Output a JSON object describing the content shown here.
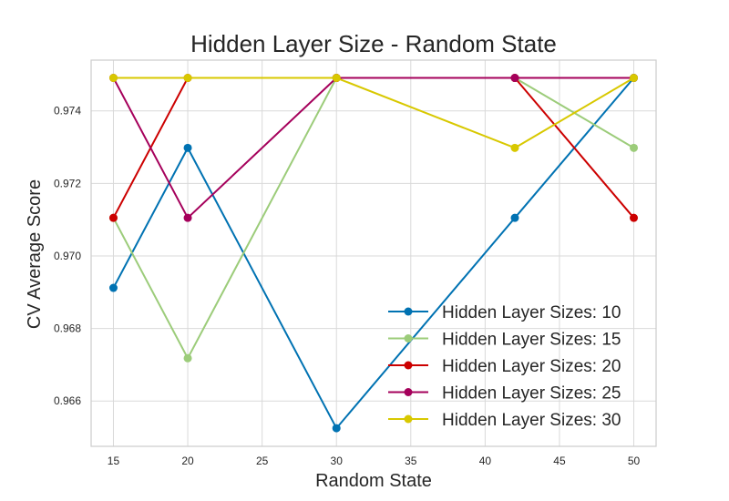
{
  "chart_data": {
    "type": "line",
    "title": "Hidden Layer Size - Random State",
    "xlabel": "Random State",
    "ylabel": "CV Average Score",
    "x": [
      15,
      20,
      30,
      42,
      50
    ],
    "xticks": [
      15,
      20,
      25,
      30,
      35,
      40,
      45,
      50
    ],
    "yticks": [
      0.966,
      0.968,
      0.97,
      0.972,
      0.974
    ],
    "ytick_labels": [
      "0.966",
      "0.968",
      "0.970",
      "0.972",
      "0.974"
    ],
    "xlim": [
      13.5,
      51.5
    ],
    "ylim": [
      0.96475,
      0.9754
    ],
    "grid": true,
    "legend_position": "lower-right",
    "series": [
      {
        "name": "Hidden Layer Sizes: 10",
        "color": "#0072b2",
        "values": [
          0.96912,
          0.97298,
          0.96525,
          0.97105,
          0.97491
        ]
      },
      {
        "name": "Hidden Layer Sizes: 15",
        "color": "#9ccc7a",
        "values": [
          0.97105,
          0.96718,
          0.97491,
          0.97491,
          0.97298
        ]
      },
      {
        "name": "Hidden Layer Sizes: 20",
        "color": "#cc0000",
        "values": [
          0.97105,
          0.97491,
          0.97491,
          0.97491,
          0.97105
        ]
      },
      {
        "name": "Hidden Layer Sizes: 25",
        "color": "#a5005b",
        "values": [
          0.97491,
          0.97105,
          0.97491,
          0.97491,
          0.97491
        ]
      },
      {
        "name": "Hidden Layer Sizes: 30",
        "color": "#d8c800",
        "values": [
          0.97491,
          0.97491,
          0.97491,
          0.97298,
          0.97491
        ]
      }
    ]
  }
}
